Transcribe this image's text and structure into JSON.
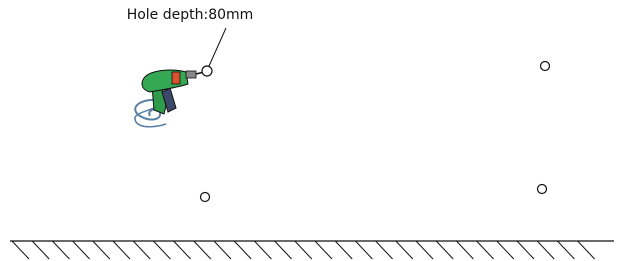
{
  "annotation": "Hole depth:80mm"
}
